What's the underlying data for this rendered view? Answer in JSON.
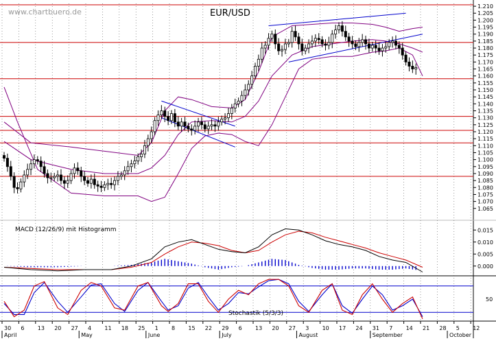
{
  "watermark": "www.chartbuero.de",
  "chart_data": [
    {
      "type": "candlestick",
      "title": "EUR/USD",
      "ylim": [
        1.058,
        1.212
      ],
      "yticks": [
        1.065,
        1.07,
        1.075,
        1.08,
        1.085,
        1.09,
        1.095,
        1.1,
        1.105,
        1.11,
        1.115,
        1.12,
        1.125,
        1.13,
        1.135,
        1.14,
        1.145,
        1.15,
        1.155,
        1.16,
        1.165,
        1.17,
        1.175,
        1.18,
        1.185,
        1.19,
        1.195,
        1.2,
        1.205,
        1.21
      ],
      "hlines": [
        1.088,
        1.112,
        1.121,
        1.131,
        1.158,
        1.184,
        1.211
      ],
      "closes": [
        1.101,
        1.095,
        1.088,
        1.08,
        1.079,
        1.084,
        1.089,
        1.093,
        1.097,
        1.1,
        1.099,
        1.095,
        1.09,
        1.087,
        1.087,
        1.088,
        1.089,
        1.085,
        1.083,
        1.085,
        1.09,
        1.094,
        1.092,
        1.088,
        1.085,
        1.083,
        1.086,
        1.082,
        1.081,
        1.08,
        1.082,
        1.083,
        1.082,
        1.085,
        1.088,
        1.089,
        1.092,
        1.095,
        1.097,
        1.099,
        1.102,
        1.104,
        1.11,
        1.115,
        1.12,
        1.128,
        1.132,
        1.135,
        1.131,
        1.128,
        1.133,
        1.127,
        1.124,
        1.127,
        1.124,
        1.122,
        1.121,
        1.124,
        1.127,
        1.125,
        1.122,
        1.124,
        1.125,
        1.124,
        1.127,
        1.129,
        1.13,
        1.133,
        1.137,
        1.14,
        1.142,
        1.146,
        1.15,
        1.154,
        1.16,
        1.167,
        1.172,
        1.18,
        1.182,
        1.187,
        1.19,
        1.183,
        1.178,
        1.179,
        1.183,
        1.184,
        1.192,
        1.188,
        1.183,
        1.178,
        1.18,
        1.183,
        1.185,
        1.187,
        1.186,
        1.183,
        1.182,
        1.184,
        1.19,
        1.193,
        1.196,
        1.192,
        1.188,
        1.185,
        1.183,
        1.181,
        1.184,
        1.186,
        1.183,
        1.18,
        1.182,
        1.18,
        1.178,
        1.18,
        1.181,
        1.184,
        1.185,
        1.182,
        1.18,
        1.175,
        1.17,
        1.167,
        1.165,
        1.166
      ],
      "bollinger": {
        "upper": [
          [
            0,
            1.127
          ],
          [
            8,
            1.112
          ],
          [
            20,
            1.109
          ],
          [
            30,
            1.106
          ],
          [
            40,
            1.103
          ],
          [
            44,
            1.112
          ],
          [
            48,
            1.135
          ],
          [
            52,
            1.145
          ],
          [
            56,
            1.143
          ],
          [
            62,
            1.138
          ],
          [
            68,
            1.137
          ],
          [
            72,
            1.143
          ],
          [
            76,
            1.163
          ],
          [
            80,
            1.188
          ],
          [
            86,
            1.196
          ],
          [
            92,
            1.197
          ],
          [
            98,
            1.198
          ],
          [
            104,
            1.198
          ],
          [
            110,
            1.197
          ],
          [
            114,
            1.195
          ],
          [
            118,
            1.192
          ],
          [
            122,
            1.194
          ],
          [
            125,
            1.195
          ]
        ],
        "middle": [
          [
            0,
            1.113
          ],
          [
            8,
            1.1
          ],
          [
            20,
            1.093
          ],
          [
            30,
            1.09
          ],
          [
            40,
            1.09
          ],
          [
            44,
            1.094
          ],
          [
            48,
            1.103
          ],
          [
            52,
            1.118
          ],
          [
            56,
            1.127
          ],
          [
            62,
            1.128
          ],
          [
            68,
            1.127
          ],
          [
            72,
            1.131
          ],
          [
            76,
            1.142
          ],
          [
            80,
            1.16
          ],
          [
            86,
            1.175
          ],
          [
            92,
            1.181
          ],
          [
            98,
            1.183
          ],
          [
            104,
            1.185
          ],
          [
            110,
            1.186
          ],
          [
            114,
            1.185
          ],
          [
            118,
            1.183
          ],
          [
            122,
            1.18
          ],
          [
            125,
            1.177
          ]
        ],
        "lower": [
          [
            0,
            1.152
          ],
          [
            4,
            1.127
          ],
          [
            10,
            1.093
          ],
          [
            20,
            1.076
          ],
          [
            30,
            1.074
          ],
          [
            40,
            1.074
          ],
          [
            44,
            1.07
          ],
          [
            48,
            1.073
          ],
          [
            52,
            1.09
          ],
          [
            56,
            1.108
          ],
          [
            60,
            1.117
          ],
          [
            64,
            1.119
          ],
          [
            68,
            1.118
          ],
          [
            72,
            1.113
          ],
          [
            76,
            1.11
          ],
          [
            80,
            1.125
          ],
          [
            84,
            1.145
          ],
          [
            88,
            1.165
          ],
          [
            92,
            1.172
          ],
          [
            98,
            1.174
          ],
          [
            104,
            1.174
          ],
          [
            110,
            1.177
          ],
          [
            114,
            1.178
          ],
          [
            118,
            1.18
          ],
          [
            122,
            1.175
          ],
          [
            125,
            1.16
          ]
        ]
      },
      "trendlines": [
        {
          "from": [
            79,
            1.196
          ],
          "to": [
            120,
            1.205
          ]
        },
        {
          "from": [
            85,
            1.17
          ],
          "to": [
            125,
            1.19
          ]
        },
        {
          "from": [
            47,
            1.142
          ],
          "to": [
            69,
            1.124
          ]
        },
        {
          "from": [
            47,
            1.13
          ],
          "to": [
            69,
            1.109
          ]
        }
      ]
    },
    {
      "type": "line",
      "title": "MACD (12/26/9) mit Histogramm",
      "ylim": [
        -0.0035,
        0.0185
      ],
      "yticks": [
        0.0,
        0.005,
        0.01,
        0.015
      ],
      "series": [
        {
          "values": [
            [
              0,
              -0.0005
            ],
            [
              8,
              -0.0015
            ],
            [
              16,
              -0.002
            ],
            [
              24,
              -0.0015
            ],
            [
              32,
              -0.0015
            ],
            [
              38,
              0.0
            ],
            [
              44,
              0.003
            ],
            [
              48,
              0.008
            ],
            [
              52,
              0.01
            ],
            [
              56,
              0.011
            ],
            [
              60,
              0.009
            ],
            [
              64,
              0.007
            ],
            [
              68,
              0.006
            ],
            [
              72,
              0.0055
            ],
            [
              76,
              0.008
            ],
            [
              80,
              0.013
            ],
            [
              84,
              0.0155
            ],
            [
              88,
              0.015
            ],
            [
              92,
              0.013
            ],
            [
              96,
              0.0105
            ],
            [
              100,
              0.009
            ],
            [
              104,
              0.008
            ],
            [
              108,
              0.0065
            ],
            [
              112,
              0.004
            ],
            [
              116,
              0.0025
            ],
            [
              120,
              0.0015
            ],
            [
              125,
              -0.0025
            ]
          ]
        },
        {
          "values": [
            [
              0,
              -0.0005
            ],
            [
              8,
              -0.001
            ],
            [
              16,
              -0.0015
            ],
            [
              24,
              -0.0015
            ],
            [
              32,
              -0.0015
            ],
            [
              38,
              -0.0005
            ],
            [
              44,
              0.0015
            ],
            [
              48,
              0.005
            ],
            [
              52,
              0.008
            ],
            [
              56,
              0.01
            ],
            [
              60,
              0.0095
            ],
            [
              64,
              0.0085
            ],
            [
              68,
              0.0065
            ],
            [
              72,
              0.0055
            ],
            [
              76,
              0.0065
            ],
            [
              80,
              0.01
            ],
            [
              84,
              0.013
            ],
            [
              88,
              0.0145
            ],
            [
              92,
              0.0138
            ],
            [
              96,
              0.012
            ],
            [
              100,
              0.0105
            ],
            [
              104,
              0.009
            ],
            [
              108,
              0.0075
            ],
            [
              112,
              0.0055
            ],
            [
              116,
              0.004
            ],
            [
              120,
              0.0025
            ],
            [
              125,
              -0.0005
            ]
          ]
        }
      ]
    },
    {
      "type": "line",
      "title": "Stochastik (5/3/3)",
      "ylim": [
        0,
        100
      ],
      "yticks": [
        50
      ],
      "hlines": [
        20,
        80
      ],
      "series": [
        {
          "values": [
            [
              0,
              45
            ],
            [
              3,
              10
            ],
            [
              6,
              25
            ],
            [
              9,
              80
            ],
            [
              12,
              90
            ],
            [
              16,
              30
            ],
            [
              19,
              15
            ],
            [
              23,
              70
            ],
            [
              26,
              88
            ],
            [
              29,
              80
            ],
            [
              33,
              30
            ],
            [
              36,
              25
            ],
            [
              40,
              80
            ],
            [
              43,
              88
            ],
            [
              47,
              35
            ],
            [
              49,
              22
            ],
            [
              52,
              40
            ],
            [
              55,
              85
            ],
            [
              58,
              85
            ],
            [
              61,
              45
            ],
            [
              64,
              20
            ],
            [
              67,
              50
            ],
            [
              70,
              70
            ],
            [
              73,
              60
            ],
            [
              76,
              85
            ],
            [
              79,
              95
            ],
            [
              82,
              95
            ],
            [
              85,
              80
            ],
            [
              88,
              35
            ],
            [
              91,
              20
            ],
            [
              95,
              70
            ],
            [
              98,
              85
            ],
            [
              101,
              25
            ],
            [
              104,
              15
            ],
            [
              107,
              60
            ],
            [
              110,
              85
            ],
            [
              113,
              50
            ],
            [
              116,
              20
            ],
            [
              119,
              40
            ],
            [
              122,
              55
            ],
            [
              125,
              5
            ]
          ]
        },
        {
          "values": [
            [
              0,
              40
            ],
            [
              3,
              15
            ],
            [
              6,
              15
            ],
            [
              9,
              65
            ],
            [
              12,
              88
            ],
            [
              16,
              45
            ],
            [
              19,
              20
            ],
            [
              23,
              55
            ],
            [
              26,
              82
            ],
            [
              29,
              85
            ],
            [
              33,
              40
            ],
            [
              36,
              22
            ],
            [
              40,
              70
            ],
            [
              43,
              88
            ],
            [
              47,
              45
            ],
            [
              49,
              25
            ],
            [
              52,
              35
            ],
            [
              55,
              75
            ],
            [
              58,
              88
            ],
            [
              61,
              55
            ],
            [
              64,
              25
            ],
            [
              67,
              40
            ],
            [
              70,
              65
            ],
            [
              73,
              62
            ],
            [
              76,
              78
            ],
            [
              79,
              92
            ],
            [
              82,
              95
            ],
            [
              85,
              85
            ],
            [
              88,
              45
            ],
            [
              91,
              22
            ],
            [
              95,
              60
            ],
            [
              98,
              85
            ],
            [
              101,
              35
            ],
            [
              104,
              18
            ],
            [
              107,
              50
            ],
            [
              110,
              80
            ],
            [
              113,
              60
            ],
            [
              116,
              25
            ],
            [
              119,
              35
            ],
            [
              122,
              50
            ],
            [
              125,
              10
            ]
          ]
        }
      ]
    }
  ],
  "x_axis": {
    "dates": [
      "30",
      "6",
      "13",
      "20",
      "27",
      "4",
      "11",
      "18",
      "25",
      "1",
      "8",
      "15",
      "22",
      "29",
      "6",
      "13",
      "20",
      "27",
      "3",
      "10",
      "17",
      "24",
      "31",
      "7",
      "14",
      "21",
      "28",
      "5",
      "12"
    ],
    "months": [
      "April",
      "May",
      "June",
      "July",
      "August",
      "September",
      "October"
    ]
  }
}
